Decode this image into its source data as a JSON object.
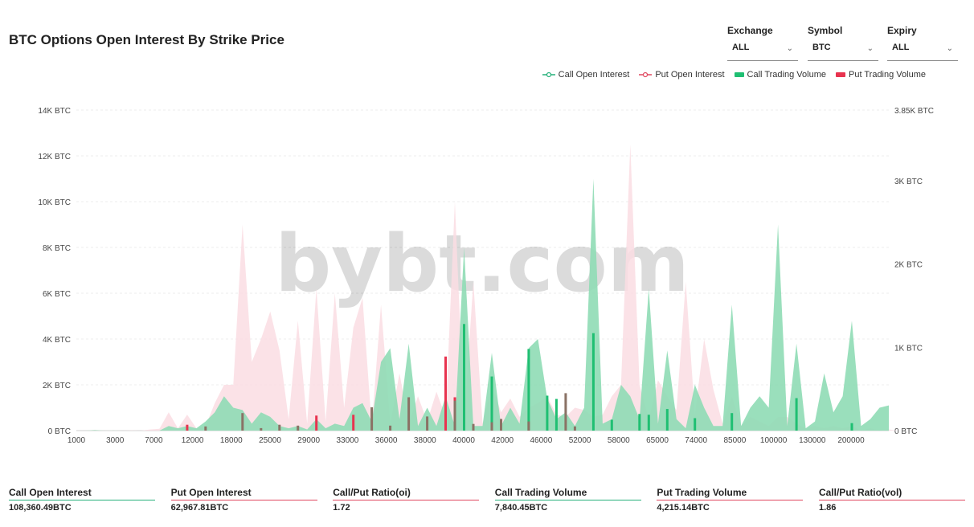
{
  "header": {
    "title": "BTC Options Open Interest By Strike Price"
  },
  "filters": [
    {
      "label": "Exchange",
      "value": "ALL"
    },
    {
      "label": "Symbol",
      "value": "BTC"
    },
    {
      "label": "Expiry",
      "value": "ALL"
    }
  ],
  "watermark": "bybt.com",
  "colors": {
    "call_area": "#8fdbb5",
    "put_area": "#fadde3",
    "call_bar": "#1fbf72",
    "put_bar": "#e8334f",
    "overlap_bar": "#8a7265",
    "call_line": "#26b07a",
    "put_line": "#e0475f"
  },
  "chart_data": {
    "type": "area",
    "title": "BTC Options Open Interest By Strike Price",
    "legend": [
      "Call Open Interest",
      "Put  Open Interest",
      "Call Trading Volume",
      "Put  Trading Volume"
    ],
    "legend_position": "top-right",
    "grid": true,
    "x_tick_labels": [
      "1000",
      "3000",
      "7000",
      "12000",
      "18000",
      "25000",
      "29000",
      "33000",
      "36000",
      "38000",
      "40000",
      "42000",
      "46000",
      "52000",
      "58000",
      "65000",
      "74000",
      "85000",
      "100000",
      "130000",
      "200000"
    ],
    "y_left_ticks": [
      "0 BTC",
      "2K BTC",
      "4K BTC",
      "6K BTC",
      "8K BTC",
      "10K BTC",
      "12K BTC",
      "14K BTC"
    ],
    "y_left_range": [
      0,
      14000
    ],
    "y_right_ticks": [
      "0 BTC",
      "1K BTC",
      "2K BTC",
      "3K BTC",
      "3.85K BTC"
    ],
    "y_right_range": [
      0,
      3850
    ],
    "put_open_interest": [
      0,
      0,
      30,
      0,
      20,
      0,
      10,
      0,
      50,
      80,
      800,
      100,
      700,
      100,
      200,
      1200,
      2000,
      2000,
      9000,
      3000,
      4000,
      5200,
      3500,
      500,
      4800,
      300,
      6200,
      400,
      6000,
      1000,
      4500,
      5800,
      200,
      5500,
      300,
      2500,
      300,
      1500,
      400,
      1700,
      600,
      10000,
      500,
      6500,
      300,
      2000,
      800,
      1400,
      600,
      1000,
      1200,
      1500,
      700,
      600,
      1000,
      900,
      600,
      700,
      1500,
      2000,
      12500,
      2000,
      500,
      2200,
      1500,
      900,
      6500,
      700,
      4000,
      1800,
      300,
      1500,
      200,
      600,
      400,
      200,
      600,
      600,
      300,
      100,
      200,
      100,
      200,
      100,
      200,
      0,
      100,
      0,
      50,
      0,
      0
    ],
    "call_open_interest": [
      0,
      0,
      20,
      0,
      10,
      0,
      0,
      0,
      0,
      0,
      200,
      100,
      200,
      100,
      400,
      800,
      1500,
      1000,
      900,
      300,
      800,
      600,
      200,
      100,
      200,
      50,
      500,
      100,
      300,
      200,
      1000,
      1200,
      400,
      3000,
      3600,
      500,
      3800,
      200,
      1000,
      200,
      1500,
      200,
      8000,
      200,
      200,
      3400,
      200,
      1000,
      300,
      3600,
      4000,
      1400,
      500,
      800,
      200,
      1000,
      11000,
      300,
      500,
      2000,
      1500,
      500,
      6200,
      300,
      3500,
      500,
      100,
      2000,
      1000,
      200,
      200,
      5500,
      200,
      1000,
      1500,
      1000,
      9000,
      200,
      3800,
      100,
      400,
      2500,
      800,
      1500,
      4800,
      200,
      500,
      1000,
      1100
    ],
    "call_trading_volume": [
      0,
      0,
      0,
      0,
      0,
      0,
      0,
      0,
      0,
      0,
      0,
      0,
      0,
      0,
      0,
      0,
      0,
      0,
      0,
      0,
      0,
      0,
      0,
      0,
      0,
      0,
      0,
      0,
      0,
      0,
      0,
      0,
      0,
      0,
      0,
      0,
      0,
      0,
      0,
      0,
      0,
      0,
      1280,
      0,
      0,
      650,
      0,
      0,
      0,
      980,
      0,
      420,
      380,
      0,
      0,
      0,
      1170,
      0,
      130,
      0,
      0,
      200,
      190,
      0,
      260,
      0,
      0,
      150,
      0,
      0,
      0,
      210,
      0,
      0,
      0,
      0,
      0,
      0,
      390,
      0,
      0,
      0,
      0,
      0,
      90,
      0,
      0,
      0,
      0
    ],
    "put_trading_volume": [
      0,
      0,
      0,
      0,
      0,
      0,
      0,
      0,
      0,
      0,
      0,
      0,
      70,
      0,
      0,
      0,
      0,
      0,
      0,
      0,
      0,
      0,
      0,
      0,
      0,
      0,
      180,
      0,
      0,
      0,
      190,
      0,
      0,
      0,
      0,
      0,
      0,
      0,
      0,
      0,
      890,
      400,
      0,
      0,
      0,
      0,
      0,
      0,
      0,
      0,
      0,
      0,
      0,
      0,
      0,
      0,
      0,
      0,
      0,
      0,
      0,
      0,
      0,
      0,
      0,
      0,
      0,
      0,
      0,
      0,
      0,
      0,
      0,
      0,
      0,
      0,
      0,
      0,
      0,
      0,
      0,
      0,
      0,
      0,
      0,
      0,
      0,
      0,
      0
    ],
    "mixed_volume_bars": [
      {
        "index": 14,
        "value": 50
      },
      {
        "index": 18,
        "value": 210
      },
      {
        "index": 20,
        "value": 30
      },
      {
        "index": 22,
        "value": 70
      },
      {
        "index": 24,
        "value": 60
      },
      {
        "index": 32,
        "value": 280
      },
      {
        "index": 34,
        "value": 60
      },
      {
        "index": 36,
        "value": 400
      },
      {
        "index": 38,
        "value": 170
      },
      {
        "index": 41,
        "value": 360
      },
      {
        "index": 43,
        "value": 80
      },
      {
        "index": 45,
        "value": 100
      },
      {
        "index": 46,
        "value": 140
      },
      {
        "index": 49,
        "value": 110
      },
      {
        "index": 53,
        "value": 450
      },
      {
        "index": 54,
        "value": 50
      }
    ]
  },
  "stats": [
    {
      "label": "Call Open Interest",
      "value": "108,360.49BTC",
      "color": "#26b07a"
    },
    {
      "label": "Put Open Interest",
      "value": "62,967.81BTC",
      "color": "#e0475f"
    },
    {
      "label": "Call/Put Ratio(oi)",
      "value": "1.72",
      "color": "#e0475f"
    },
    {
      "label": "Call Trading Volume",
      "value": "7,840.45BTC",
      "color": "#26b07a"
    },
    {
      "label": "Put Trading Volume",
      "value": "4,215.14BTC",
      "color": "#e0475f"
    },
    {
      "label": "Call/Put Ratio(vol)",
      "value": "1.86",
      "color": "#e0475f"
    }
  ]
}
